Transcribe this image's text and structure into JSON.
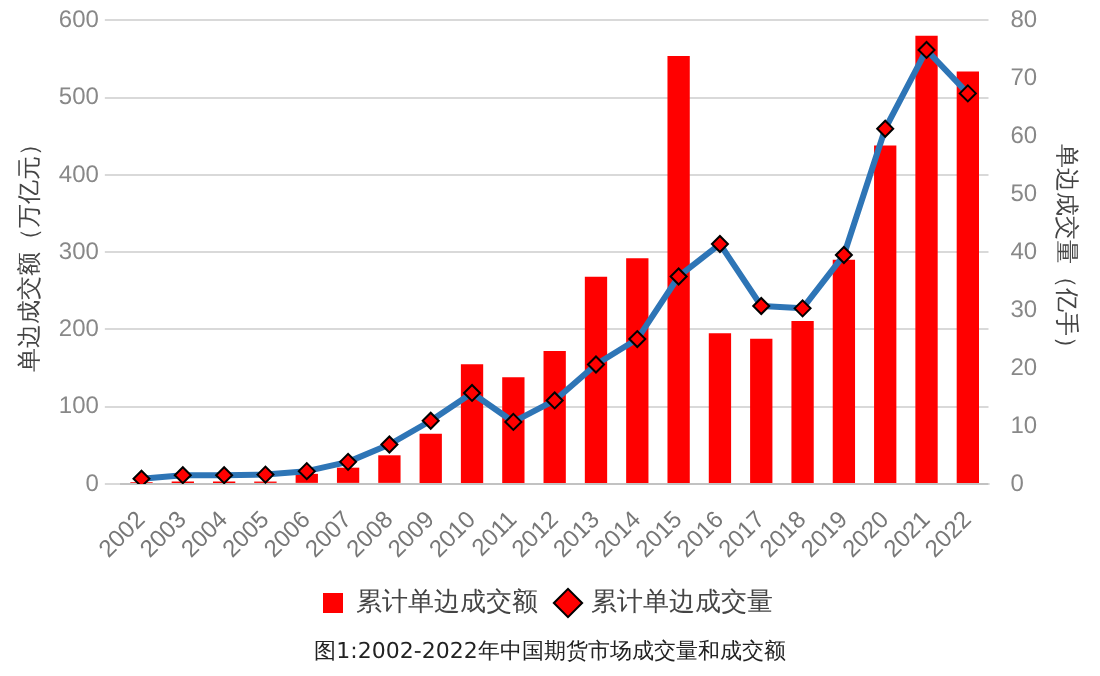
{
  "chart_data": {
    "type": "bar",
    "ylabel": "单边成交额（万亿元）",
    "y2label": "单边成交量（亿手）",
    "categories": [
      "2002",
      "2003",
      "2004",
      "2005",
      "2006",
      "2007",
      "2008",
      "2009",
      "2010",
      "2011",
      "2012",
      "2013",
      "2014",
      "2015",
      "2016",
      "2017",
      "2018",
      "2019",
      "2020",
      "2021",
      "2022"
    ],
    "series": [
      {
        "name": "累计单边成交额",
        "color": "#ff0000",
        "values": [
          2,
          3,
          3,
          3,
          13,
          21,
          37,
          65,
          155,
          138,
          172,
          268,
          292,
          554,
          195,
          188,
          211,
          290,
          438,
          580,
          534
        ]
      },
      {
        "name": "累计单边成交量",
        "type": "line",
        "axis": "y2",
        "color": "#2e75b6",
        "marker": "diamond",
        "values": [
          0.9,
          1.5,
          1.5,
          1.6,
          2.2,
          3.8,
          6.8,
          10.9,
          15.7,
          10.7,
          14.4,
          20.6,
          25,
          35.8,
          41.4,
          30.7,
          30.3,
          39.5,
          61.3,
          74.9,
          67.4
        ]
      }
    ],
    "ylim": [
      0,
      600
    ],
    "yticks": [
      0,
      100,
      200,
      300,
      400,
      500,
      600
    ],
    "y2lim": [
      0,
      80
    ],
    "y2ticks": [
      0,
      10,
      20,
      30,
      40,
      50,
      60,
      70,
      80
    ],
    "grid": "y",
    "legend": "bottom",
    "annotations": [
      "图1:2002-2022年中国期货市场成交量和成交额"
    ]
  }
}
